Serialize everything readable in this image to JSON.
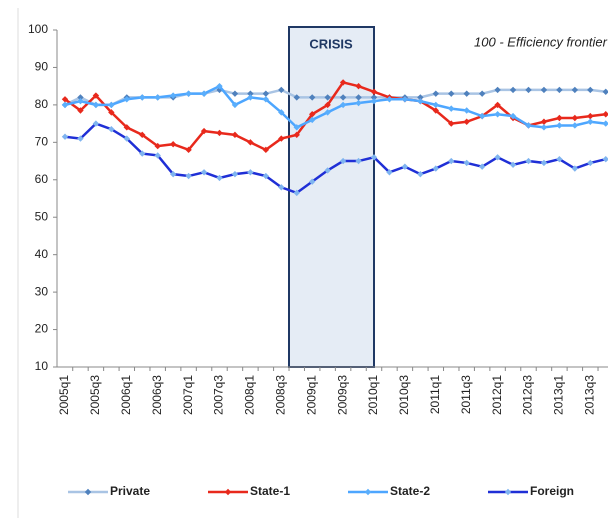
{
  "chart_data": {
    "type": "line",
    "annotation": "100 - Efficiency frontier",
    "shaded_label": "CRISIS",
    "categories": [
      "2005q1",
      null,
      "2005q3",
      null,
      "2006q1",
      null,
      "2006q3",
      null,
      "2007q1",
      null,
      "2007q3",
      null,
      "2008q1",
      null,
      "2008q3",
      null,
      "2009q1",
      null,
      "2009q3",
      null,
      "2010q1",
      null,
      "2010q3",
      null,
      "2011q1",
      null,
      "2011q3",
      null,
      "2012q1",
      null,
      "2012q3",
      null,
      "2013q1",
      null,
      "2013q3",
      null
    ],
    "series": [
      {
        "name": "Private",
        "color": "#4f81bd",
        "line_color": "#a9c4e4",
        "values": [
          80,
          82,
          80,
          80,
          82,
          82,
          82,
          82,
          83,
          83,
          84,
          83,
          83,
          83,
          84,
          82,
          82,
          82,
          82,
          82,
          82,
          82,
          82,
          82,
          83,
          83,
          83,
          83,
          84,
          84,
          84,
          84,
          84,
          84,
          84,
          83.5
        ]
      },
      {
        "name": "State-1",
        "color": "#e8291c",
        "line_color": "#e8291c",
        "values": [
          81.5,
          78.5,
          82.5,
          78,
          74,
          72,
          69,
          69.5,
          68,
          73,
          72.5,
          72,
          70,
          68,
          71,
          72,
          77.5,
          80,
          86,
          85,
          83.5,
          82,
          81.5,
          81,
          78.5,
          75,
          75.5,
          77,
          80,
          76.5,
          74.5,
          75.5,
          76.5,
          76.5,
          77,
          77.5
        ]
      },
      {
        "name": "State-2",
        "color": "#5aaefc",
        "line_color": "#4da6ff",
        "values": [
          80,
          81,
          80,
          80,
          81.5,
          82,
          82,
          82.5,
          83,
          83,
          85,
          80,
          82,
          81.5,
          78,
          74,
          76,
          78,
          80,
          80.5,
          81,
          81.5,
          81.5,
          81,
          80,
          79,
          78.5,
          77,
          77.5,
          77,
          74.5,
          74,
          74.5,
          74.5,
          75.5,
          75
        ]
      },
      {
        "name": "Foreign",
        "color": "#7fb4f0",
        "line_color": "#1f2fd6",
        "values": [
          71.5,
          71,
          75,
          73.5,
          71,
          67,
          66.5,
          61.5,
          61,
          62,
          60.5,
          61.5,
          62,
          61,
          58,
          56.5,
          59.5,
          62.5,
          65,
          65,
          66,
          62,
          63.5,
          61.5,
          63,
          65,
          64.5,
          63.5,
          66,
          64,
          65,
          64.5,
          65.5,
          63,
          64.5,
          65.5
        ]
      }
    ],
    "ylim": [
      10,
      100
    ],
    "yticks": [
      10,
      20,
      30,
      40,
      50,
      60,
      70,
      80,
      90,
      100
    ],
    "grid": false
  }
}
